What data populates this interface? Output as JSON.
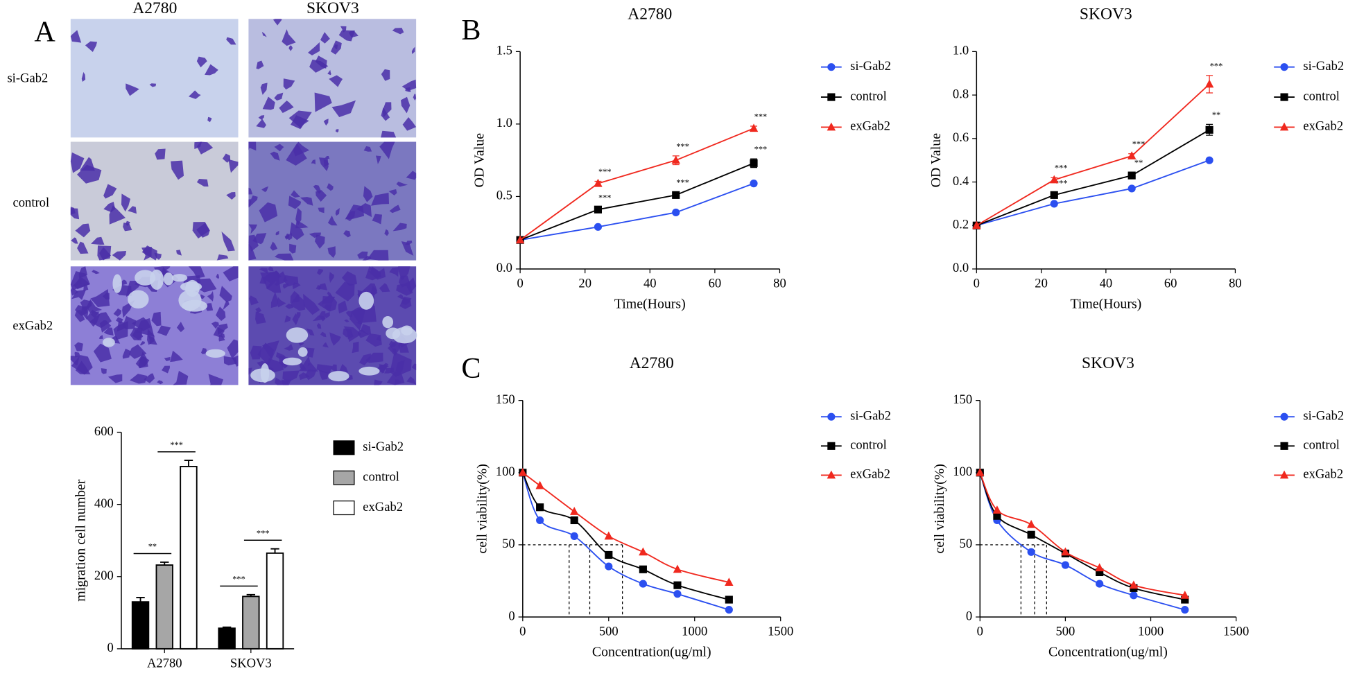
{
  "figure": {
    "panel_labels": [
      "A",
      "B",
      "C"
    ],
    "micrograph": {
      "columns": [
        "A2780",
        "SKOV3"
      ],
      "rows": [
        "si-Gab2",
        "control",
        "exGab2"
      ]
    }
  },
  "chart_data": [
    {
      "type": "bar",
      "categories": [
        "A2780",
        "SKOV3"
      ],
      "ylabel": "migration cell number",
      "ylim": [
        0,
        600
      ],
      "yticks": [
        0,
        200,
        400,
        600
      ],
      "legend": "right",
      "series": [
        {
          "name": "si-Gab2",
          "color": "#000000",
          "values": [
            130,
            57
          ],
          "errors": [
            12,
            3
          ]
        },
        {
          "name": "control",
          "color": "#a6a6a6",
          "values": [
            232,
            145
          ],
          "errors": [
            8,
            5
          ]
        },
        {
          "name": "exGab2",
          "color": "#ffffff",
          "values": [
            505,
            265
          ],
          "errors": [
            17,
            12
          ]
        }
      ],
      "significance": [
        [
          "**",
          "***"
        ],
        [
          "***",
          "***"
        ]
      ]
    },
    {
      "type": "line",
      "title": "A2780",
      "xlabel": "Time(Hours)",
      "ylabel": "OD Value",
      "xlim": [
        0,
        80
      ],
      "xticks": [
        0,
        20,
        40,
        60,
        80
      ],
      "ylim": [
        0,
        1.5
      ],
      "yticks": [
        {
          "value": 0,
          "label": "0.0"
        },
        0.5,
        {
          "value": 1,
          "label": "1.0"
        },
        1.5
      ],
      "legend": "right",
      "x": [
        0,
        24,
        48,
        72
      ],
      "series": [
        {
          "name": "si-Gab2",
          "color": "#2b4ff0",
          "marker": "circle",
          "values": [
            0.2,
            0.29,
            0.39,
            0.59
          ]
        },
        {
          "name": "control",
          "color": "#000000",
          "marker": "square",
          "values": [
            0.2,
            0.41,
            0.51,
            0.73
          ],
          "errors": [
            0,
            0.015,
            0.02,
            0.03
          ],
          "point_labels": [
            null,
            "***",
            "***",
            "***"
          ]
        },
        {
          "name": "exGab2",
          "color": "#f0281e",
          "marker": "triangle",
          "values": [
            0.2,
            0.59,
            0.75,
            0.97
          ],
          "errors": [
            0,
            0.015,
            0.03,
            0.015
          ],
          "point_labels": [
            null,
            "***",
            "***",
            "***"
          ]
        }
      ]
    },
    {
      "type": "line",
      "title": "SKOV3",
      "xlabel": "Time(Hours)",
      "ylabel": "OD Value",
      "xlim": [
        0,
        80
      ],
      "xticks": [
        0,
        20,
        40,
        60,
        80
      ],
      "ylim": [
        0,
        1
      ],
      "yticks": [
        {
          "value": 0,
          "label": "0.0"
        },
        0.2,
        0.4,
        0.6,
        0.8,
        {
          "value": 1,
          "label": "1.0"
        }
      ],
      "legend": "right",
      "x": [
        0,
        24,
        48,
        72
      ],
      "series": [
        {
          "name": "si-Gab2",
          "color": "#2b4ff0",
          "marker": "circle",
          "values": [
            0.2,
            0.3,
            0.37,
            0.5
          ]
        },
        {
          "name": "control",
          "color": "#000000",
          "marker": "square",
          "values": [
            0.2,
            0.34,
            0.43,
            0.64
          ],
          "errors": [
            0,
            0.01,
            0.015,
            0.025
          ],
          "point_labels": [
            null,
            "***",
            "**",
            "**"
          ]
        },
        {
          "name": "exGab2",
          "color": "#f0281e",
          "marker": "triangle",
          "values": [
            0.2,
            0.41,
            0.52,
            0.85
          ],
          "errors": [
            0,
            0.01,
            0.01,
            0.04
          ],
          "point_labels": [
            null,
            "***",
            "***",
            "***"
          ]
        }
      ]
    },
    {
      "type": "scatter",
      "title": "A2780",
      "xlabel": "Concentration(ug/ml)",
      "ylabel": "cell viability(%)",
      "xlim": [
        0,
        1500
      ],
      "xticks": [
        0,
        500,
        1000,
        1500
      ],
      "ylim": [
        0,
        150
      ],
      "yticks": [
        0,
        50,
        100,
        150
      ],
      "legend": "right",
      "x": [
        0,
        100,
        300,
        500,
        700,
        900,
        1200
      ],
      "reference_y": 50,
      "series": [
        {
          "name": "si-Gab2",
          "color": "#2b4ff0",
          "marker": "circle",
          "values": [
            100,
            67,
            56,
            35,
            23,
            16,
            5
          ],
          "ic50": 270
        },
        {
          "name": "control",
          "color": "#000000",
          "marker": "square",
          "values": [
            100,
            76,
            67,
            43,
            33,
            22,
            12
          ],
          "ic50": 390
        },
        {
          "name": "exGab2",
          "color": "#f0281e",
          "marker": "triangle",
          "values": [
            100,
            91,
            73,
            56,
            45,
            33,
            24
          ],
          "ic50": 580
        }
      ]
    },
    {
      "type": "scatter",
      "title": "SKOV3",
      "xlabel": "Concentration(ug/ml)",
      "ylabel": "cell viability(%)",
      "xlim": [
        0,
        1500
      ],
      "xticks": [
        0,
        500,
        1000,
        1500
      ],
      "ylim": [
        0,
        150
      ],
      "yticks": [
        0,
        50,
        100,
        150
      ],
      "legend": "right",
      "x": [
        0,
        100,
        300,
        500,
        700,
        900,
        1200
      ],
      "reference_y": 50,
      "series": [
        {
          "name": "si-Gab2",
          "color": "#2b4ff0",
          "marker": "circle",
          "values": [
            100,
            67,
            45,
            36,
            23,
            15,
            5
          ],
          "ic50": 240
        },
        {
          "name": "control",
          "color": "#000000",
          "marker": "square",
          "values": [
            100,
            70,
            57,
            44,
            31,
            20,
            12
          ],
          "ic50": 320
        },
        {
          "name": "exGab2",
          "color": "#f0281e",
          "marker": "triangle",
          "values": [
            100,
            74,
            64,
            45,
            34,
            22,
            15
          ],
          "ic50": 390
        }
      ]
    }
  ]
}
